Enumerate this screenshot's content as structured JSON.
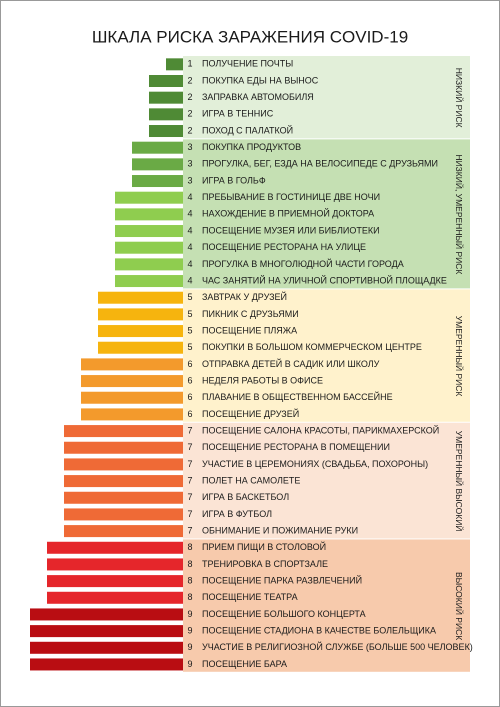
{
  "chart_data": {
    "type": "bar",
    "title": "ШКАЛА РИСКА ЗАРАЖЕНИЯ COVID-19",
    "groups": [
      {
        "label": "НИЗКИЙ РИСК",
        "color": "#e2efd9",
        "items": [
          {
            "label": "ПОЛУЧЕНИЕ ПОЧТЫ",
            "value": 1,
            "color": "#4f8a35"
          },
          {
            "label": "ПОКУПКА ЕДЫ НА ВЫНОС",
            "value": 2,
            "color": "#4f8a35"
          },
          {
            "label": "ЗАПРАВКА АВТОМОБИЛЯ",
            "value": 2,
            "color": "#4f8a35"
          },
          {
            "label": "ИГРА В ТЕННИС",
            "value": 2,
            "color": "#4f8a35"
          },
          {
            "label": "ПОХОД С ПАЛАТКОЙ",
            "value": 2,
            "color": "#4f8a35"
          }
        ]
      },
      {
        "label": "НИЗКИЙ, УМЕРЕННЫЙ РИСК",
        "color": "#c5e0b3",
        "items": [
          {
            "label": "ПОКУПКА ПРОДУКТОВ",
            "value": 3,
            "color": "#6aaa45"
          },
          {
            "label": "ПРОГУЛКА, БЕГ, ЕЗДА НА ВЕЛОСИПЕДЕ С ДРУЗЬЯМИ",
            "value": 3,
            "color": "#6aaa45"
          },
          {
            "label": "ИГРА В ГОЛЬФ",
            "value": 3,
            "color": "#6aaa45"
          },
          {
            "label": "ПРЕБЫВАНИЕ В ГОСТИНИЦЕ ДВЕ НОЧИ",
            "value": 4,
            "color": "#8fcd4f"
          },
          {
            "label": "НАХОЖДЕНИЕ В ПРИЕМНОЙ ДОКТОРА",
            "value": 4,
            "color": "#8fcd4f"
          },
          {
            "label": "ПОСЕЩЕНИЕ МУЗЕЯ ИЛИ БИБЛИОТЕКИ",
            "value": 4,
            "color": "#8fcd4f"
          },
          {
            "label": "ПОСЕЩЕНИЕ РЕСТОРАНА НА УЛИЦЕ",
            "value": 4,
            "color": "#8fcd4f"
          },
          {
            "label": "ПРОГУЛКА В МНОГОЛЮДНОЙ ЧАСТИ ГОРОДА",
            "value": 4,
            "color": "#8fcd4f"
          },
          {
            "label": "ЧАС ЗАНЯТИЙ НА УЛИЧНОЙ СПОРТИВНОЙ ПЛОЩАДКЕ",
            "value": 4,
            "color": "#8fcd4f"
          }
        ]
      },
      {
        "label": "УМЕРЕННЫЙ РИСК",
        "color": "#fff2cc",
        "items": [
          {
            "label": "ЗАВТРАК У ДРУЗЕЙ",
            "value": 5,
            "color": "#f6b40e"
          },
          {
            "label": "ПИКНИК С ДРУЗЬЯМИ",
            "value": 5,
            "color": "#f6b40e"
          },
          {
            "label": "ПОСЕЩЕНИЕ ПЛЯЖА",
            "value": 5,
            "color": "#f6b40e"
          },
          {
            "label": "ПОКУПКИ В БОЛЬШОМ КОММЕРЧЕСКОМ ЦЕНТРЕ",
            "value": 5,
            "color": "#f6b40e"
          },
          {
            "label": "ОТПРАВКА ДЕТЕЙ В САДИК ИЛИ ШКОЛУ",
            "value": 6,
            "color": "#f39a2c"
          },
          {
            "label": "НЕДЕЛЯ РАБОТЫ В ОФИСЕ",
            "value": 6,
            "color": "#f39a2c"
          },
          {
            "label": "ПЛАВАНИЕ В ОБЩЕСТВЕННОМ БАССЕЙНЕ",
            "value": 6,
            "color": "#f39a2c"
          },
          {
            "label": "ПОСЕЩЕНИЕ ДРУЗЕЙ",
            "value": 6,
            "color": "#f39a2c"
          }
        ]
      },
      {
        "label": "УМЕРЕННЫЙ ВЫСОКИЙ",
        "color": "#fbe4d5",
        "items": [
          {
            "label": "ПОСЕЩЕНИЕ САЛОНА КРАСОТЫ, ПАРИКМАХЕРСКОЙ",
            "value": 7,
            "color": "#ef6a36"
          },
          {
            "label": "ПОСЕЩЕНИЕ РЕСТОРАНА В ПОМЕЩЕНИИ",
            "value": 7,
            "color": "#ef6a36"
          },
          {
            "label": "УЧАСТИЕ В ЦЕРЕМОНИЯХ (СВАДЬБА, ПОХОРОНЫ)",
            "value": 7,
            "color": "#ef6a36"
          },
          {
            "label": "ПОЛЕТ НА САМОЛЕТЕ",
            "value": 7,
            "color": "#ef6a36"
          },
          {
            "label": "ИГРА В БАСКЕТБОЛ",
            "value": 7,
            "color": "#ef6a36"
          },
          {
            "label": "ИГРА В ФУТБОЛ",
            "value": 7,
            "color": "#ef6a36"
          },
          {
            "label": "ОБНИМАНИЕ И ПОЖИМАНИЕ РУКИ",
            "value": 7,
            "color": "#ef6a36"
          }
        ]
      },
      {
        "label": "ВЫСОКИЙ РИСК",
        "color": "#f7caac",
        "items": [
          {
            "label": "ПРИЕМ ПИЩИ В СТОЛОВОЙ",
            "value": 8,
            "color": "#e5262b"
          },
          {
            "label": "ТРЕНИРОВКА В СПОРТЗАЛЕ",
            "value": 8,
            "color": "#e5262b"
          },
          {
            "label": "ПОСЕЩЕНИЕ ПАРКА РАЗВЛЕЧЕНИЙ",
            "value": 8,
            "color": "#e5262b"
          },
          {
            "label": "ПОСЕЩЕНИЕ ТЕАТРА",
            "value": 8,
            "color": "#e5262b"
          },
          {
            "label": "ПОСЕЩЕНИЕ БОЛЬШОГО КОНЦЕРТА",
            "value": 9,
            "color": "#b90d12"
          },
          {
            "label": "ПОСЕЩЕНИЕ СТАДИОНА В КАЧЕСТВЕ БОЛЕЛЬЩИКА",
            "value": 9,
            "color": "#b90d12"
          },
          {
            "label": "УЧАСТИЕ В РЕЛИГИОЗНОЙ СЛУЖБЕ (БОЛЬШЕ 500 ЧЕЛОВЕК)",
            "value": 9,
            "color": "#b90d12"
          },
          {
            "label": "ПОСЕЩЕНИЕ БАРА",
            "value": 9,
            "color": "#b90d12"
          }
        ]
      }
    ]
  }
}
